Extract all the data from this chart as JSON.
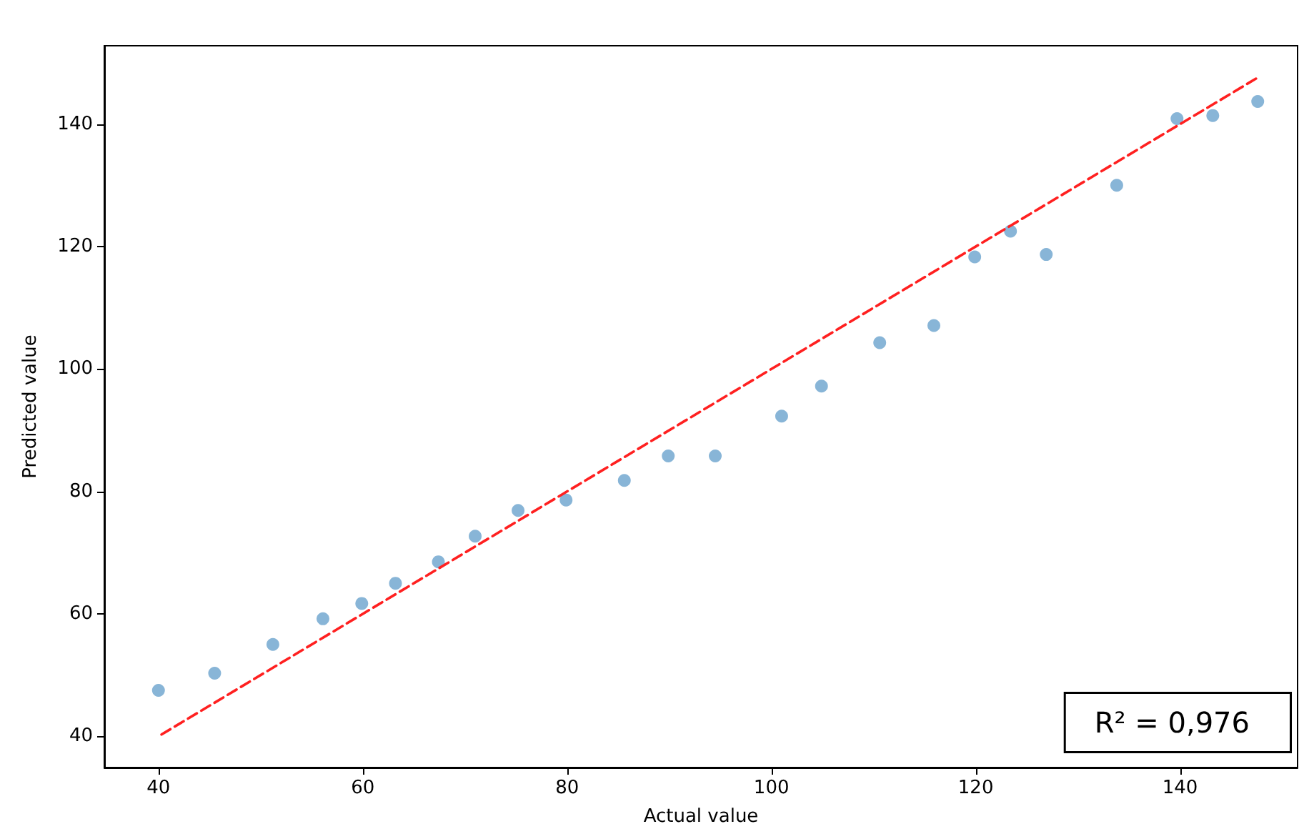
{
  "chart_data": {
    "type": "scatter",
    "xlabel": "Actual value",
    "ylabel": "Predicted value",
    "xlim": [
      34.7,
      151.5
    ],
    "xticks": [
      40,
      60,
      80,
      100,
      120,
      140
    ],
    "ylim": [
      34.9,
      152.8
    ],
    "yticks": [
      40,
      60,
      80,
      100,
      120,
      140
    ],
    "grid": false,
    "series": [
      {
        "marker": "circle",
        "color": "#6aa3cd",
        "x": [
          40,
          45.5,
          51.2,
          56.1,
          59.9,
          63.2,
          67.4,
          71.0,
          75.2,
          79.9,
          85.6,
          89.9,
          94.5,
          101,
          104.9,
          110.6,
          115.9,
          119.9,
          123.4,
          126.9,
          133.8,
          139.7,
          143.2,
          147.6
        ],
        "values": [
          47.5,
          50.3,
          55,
          59.2,
          61.7,
          65,
          68.5,
          72.7,
          76.9,
          78.6,
          81.8,
          85.8,
          85.8,
          92.3,
          97.2,
          104.3,
          107.1,
          118.3,
          122.5,
          118.7,
          130,
          140.9,
          141.4,
          143.7
        ]
      },
      {
        "type": "line",
        "marker": "none",
        "line_style": "dashed",
        "color": "#ff2020",
        "x": [
          40.3,
          147.6
        ],
        "values": [
          40.3,
          147.6
        ]
      }
    ],
    "annotations": [
      "R² = 0,976"
    ]
  }
}
